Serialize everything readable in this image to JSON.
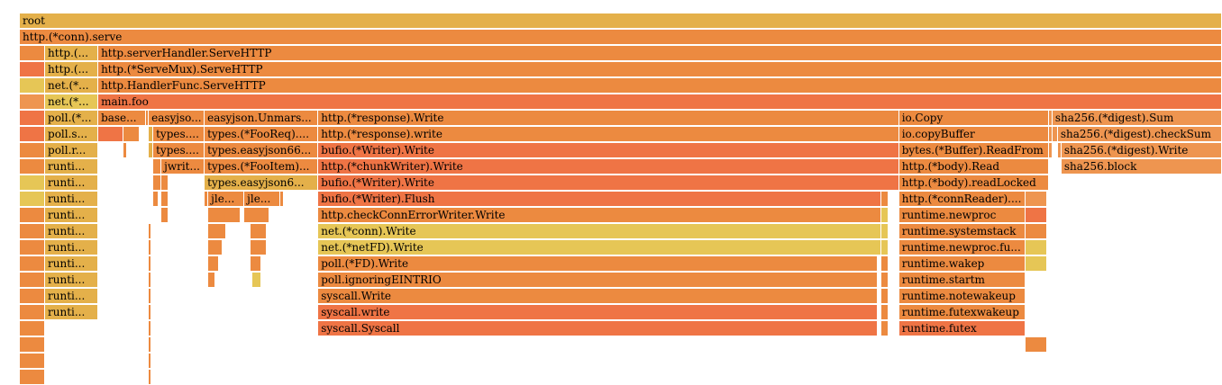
{
  "palette": {
    "gold": "#e4b04a",
    "orange": "#ec8a40",
    "orange_light": "#ee9550",
    "red_orange": "#ef7445",
    "yellow": "#e6c656",
    "salmon": "#ea8e59"
  },
  "total_samples": 1333,
  "rows": [
    [
      {
        "label": "root",
        "start": 0,
        "width": 1333,
        "color": "#e4b04a"
      }
    ],
    [
      {
        "label": "http.(*conn).serve",
        "start": 0,
        "width": 1333,
        "color": "#ec8a40"
      }
    ],
    [
      {
        "label": "",
        "start": 0,
        "width": 28,
        "color": "#ec8a40"
      },
      {
        "label": "http.(...",
        "start": 28,
        "width": 59,
        "color": "#e4b04a"
      },
      {
        "label": "http.serverHandler.ServeHTTP",
        "start": 87,
        "width": 1246,
        "color": "#ec8a40"
      }
    ],
    [
      {
        "label": "",
        "start": 0,
        "width": 28,
        "color": "#ef7445"
      },
      {
        "label": "http.(...",
        "start": 28,
        "width": 59,
        "color": "#e4b04a"
      },
      {
        "label": "http.(*ServeMux).ServeHTTP",
        "start": 87,
        "width": 1246,
        "color": "#ec8a40"
      }
    ],
    [
      {
        "label": "",
        "start": 0,
        "width": 28,
        "color": "#e6c656"
      },
      {
        "label": "net.(*...",
        "start": 28,
        "width": 59,
        "color": "#e4b04a"
      },
      {
        "label": "http.HandlerFunc.ServeHTTP",
        "start": 87,
        "width": 1246,
        "color": "#ec8a40"
      }
    ],
    [
      {
        "label": "",
        "start": 0,
        "width": 28,
        "color": "#ee9550"
      },
      {
        "label": "net.(*...",
        "start": 28,
        "width": 59,
        "color": "#e6c656"
      },
      {
        "label": "main.foo",
        "start": 87,
        "width": 1246,
        "color": "#ef7445"
      }
    ],
    [
      {
        "label": "",
        "start": 0,
        "width": 28,
        "color": "#ef7445"
      },
      {
        "label": "poll.(*...",
        "start": 28,
        "width": 59,
        "color": "#e4b04a"
      },
      {
        "label": "base...",
        "start": 87,
        "width": 53,
        "color": "#ec8a40"
      },
      {
        "label": "",
        "start": 140,
        "width": 3,
        "color": "#ec8a40"
      },
      {
        "label": "easyjso...",
        "start": 143,
        "width": 62,
        "color": "#ec8a40"
      },
      {
        "label": "easyjson.Unmars...",
        "start": 205,
        "width": 126,
        "color": "#ec8a40"
      },
      {
        "label": "http.(*response).Write",
        "start": 331,
        "width": 644,
        "color": "#ec8a40"
      },
      {
        "label": "io.Copy",
        "start": 975,
        "width": 166,
        "color": "#ec8a40"
      },
      {
        "label": "",
        "start": 1141,
        "width": 4,
        "color": "#ee9550"
      },
      {
        "label": "sha256.(*digest).Sum",
        "start": 1145,
        "width": 188,
        "color": "#ee9550"
      }
    ],
    [
      {
        "label": "",
        "start": 0,
        "width": 28,
        "color": "#ef7445"
      },
      {
        "label": "poll.s...",
        "start": 28,
        "width": 59,
        "color": "#e4b04a"
      },
      {
        "label": "",
        "start": 87,
        "width": 28,
        "color": "#ef7445"
      },
      {
        "label": "",
        "start": 115,
        "width": 18,
        "color": "#ec8a40"
      },
      {
        "label": "",
        "start": 143,
        "width": 5,
        "color": "#e4b04a"
      },
      {
        "label": "types....",
        "start": 148,
        "width": 57,
        "color": "#ec8a40"
      },
      {
        "label": "types.(*FooReq)....",
        "start": 205,
        "width": 126,
        "color": "#ec8a40"
      },
      {
        "label": "http.(*response).write",
        "start": 331,
        "width": 644,
        "color": "#ec8a40"
      },
      {
        "label": "io.copyBuffer",
        "start": 975,
        "width": 166,
        "color": "#ec8a40"
      },
      {
        "label": "",
        "start": 1141,
        "width": 4,
        "color": "#ee9550"
      },
      {
        "label": "",
        "start": 1145,
        "width": 6,
        "color": "#ee9550"
      },
      {
        "label": "sha256.(*digest).checkSum",
        "start": 1151,
        "width": 182,
        "color": "#ee9550"
      }
    ],
    [
      {
        "label": "",
        "start": 0,
        "width": 28,
        "color": "#ec8a40"
      },
      {
        "label": "poll.r...",
        "start": 28,
        "width": 59,
        "color": "#e4b04a"
      },
      {
        "label": "",
        "start": 115,
        "width": 4,
        "color": "#ec8a40"
      },
      {
        "label": "",
        "start": 143,
        "width": 5,
        "color": "#e4b04a"
      },
      {
        "label": "types....",
        "start": 148,
        "width": 57,
        "color": "#ec8a40"
      },
      {
        "label": "types.easyjson66...",
        "start": 205,
        "width": 126,
        "color": "#ec8a40"
      },
      {
        "label": "bufio.(*Writer).Write",
        "start": 331,
        "width": 644,
        "color": "#ef7445"
      },
      {
        "label": "bytes.(*Buffer).ReadFrom",
        "start": 975,
        "width": 166,
        "color": "#ec8a40"
      },
      {
        "label": "",
        "start": 1141,
        "width": 4,
        "color": "#ee9550"
      },
      {
        "label": "",
        "start": 1151,
        "width": 4,
        "color": "#ee9550"
      },
      {
        "label": "sha256.(*digest).Write",
        "start": 1155,
        "width": 178,
        "color": "#ee9550"
      }
    ],
    [
      {
        "label": "",
        "start": 0,
        "width": 28,
        "color": "#ec8a40"
      },
      {
        "label": "runti...",
        "start": 28,
        "width": 59,
        "color": "#e4b04a"
      },
      {
        "label": "",
        "start": 148,
        "width": 9,
        "color": "#ec8a40"
      },
      {
        "label": "jwrit...",
        "start": 157,
        "width": 48,
        "color": "#ec8a40"
      },
      {
        "label": "types.(*FooItem)...",
        "start": 205,
        "width": 126,
        "color": "#ec8a40"
      },
      {
        "label": "http.(*chunkWriter).Write",
        "start": 331,
        "width": 644,
        "color": "#ef7445"
      },
      {
        "label": "http.(*body).Read",
        "start": 975,
        "width": 166,
        "color": "#ec8a40"
      },
      {
        "label": "sha256.block",
        "start": 1155,
        "width": 178,
        "color": "#ee9550"
      }
    ],
    [
      {
        "label": "",
        "start": 0,
        "width": 28,
        "color": "#e6c656"
      },
      {
        "label": "runti...",
        "start": 28,
        "width": 59,
        "color": "#e4b04a"
      },
      {
        "label": "",
        "start": 148,
        "width": 9,
        "color": "#ec8a40"
      },
      {
        "label": "",
        "start": 157,
        "width": 8,
        "color": "#ec8a40"
      },
      {
        "label": "types.easyjson6...",
        "start": 205,
        "width": 126,
        "color": "#e4b04a"
      },
      {
        "label": "bufio.(*Writer).Write",
        "start": 331,
        "width": 644,
        "color": "#ef7445"
      },
      {
        "label": "http.(*body).readLocked",
        "start": 975,
        "width": 166,
        "color": "#ec8a40"
      }
    ],
    [
      {
        "label": "",
        "start": 0,
        "width": 28,
        "color": "#e6c656"
      },
      {
        "label": "runti...",
        "start": 28,
        "width": 59,
        "color": "#e4b04a"
      },
      {
        "label": "",
        "start": 148,
        "width": 6,
        "color": "#ec8a40"
      },
      {
        "label": "",
        "start": 157,
        "width": 8,
        "color": "#ec8a40"
      },
      {
        "label": "",
        "start": 205,
        "width": 4,
        "color": "#ec8a40"
      },
      {
        "label": "jle...",
        "start": 209,
        "width": 40,
        "color": "#ec8a40"
      },
      {
        "label": "jle...",
        "start": 249,
        "width": 40,
        "color": "#ec8a40"
      },
      {
        "label": "",
        "start": 289,
        "width": 4,
        "color": "#ec8a40"
      },
      {
        "label": "bufio.(*Writer).Flush",
        "start": 331,
        "width": 624,
        "color": "#ef7445"
      },
      {
        "label": "",
        "start": 955,
        "width": 8,
        "color": "#ec8a40"
      },
      {
        "label": "http.(*connReader)....",
        "start": 975,
        "width": 140,
        "color": "#ec8a40"
      },
      {
        "label": "",
        "start": 1115,
        "width": 24,
        "color": "#ee9550"
      }
    ],
    [
      {
        "label": "",
        "start": 0,
        "width": 28,
        "color": "#ec8a40"
      },
      {
        "label": "runti...",
        "start": 28,
        "width": 59,
        "color": "#e4b04a"
      },
      {
        "label": "",
        "start": 157,
        "width": 8,
        "color": "#ec8a40"
      },
      {
        "label": "",
        "start": 209,
        "width": 36,
        "color": "#ec8a40"
      },
      {
        "label": "",
        "start": 249,
        "width": 28,
        "color": "#ec8a40"
      },
      {
        "label": "http.checkConnErrorWriter.Write",
        "start": 331,
        "width": 624,
        "color": "#ec8a40"
      },
      {
        "label": "",
        "start": 955,
        "width": 8,
        "color": "#e6c656"
      },
      {
        "label": "runtime.newproc",
        "start": 975,
        "width": 140,
        "color": "#ec8a40"
      },
      {
        "label": "",
        "start": 1115,
        "width": 24,
        "color": "#ef7445"
      }
    ],
    [
      {
        "label": "",
        "start": 0,
        "width": 28,
        "color": "#ec8a40"
      },
      {
        "label": "runti...",
        "start": 28,
        "width": 59,
        "color": "#e4b04a"
      },
      {
        "label": "",
        "start": 143,
        "width": 3,
        "color": "#ec8a40"
      },
      {
        "label": "",
        "start": 209,
        "width": 20,
        "color": "#ec8a40"
      },
      {
        "label": "",
        "start": 256,
        "width": 18,
        "color": "#ec8a40"
      },
      {
        "label": "net.(*conn).Write",
        "start": 331,
        "width": 624,
        "color": "#e6c656"
      },
      {
        "label": "",
        "start": 955,
        "width": 8,
        "color": "#e6c656"
      },
      {
        "label": "runtime.systemstack",
        "start": 975,
        "width": 140,
        "color": "#ec8a40"
      },
      {
        "label": "",
        "start": 1115,
        "width": 24,
        "color": "#ec8a40"
      }
    ],
    [
      {
        "label": "",
        "start": 0,
        "width": 28,
        "color": "#ec8a40"
      },
      {
        "label": "runti...",
        "start": 28,
        "width": 59,
        "color": "#e4b04a"
      },
      {
        "label": "",
        "start": 143,
        "width": 3,
        "color": "#ec8a40"
      },
      {
        "label": "",
        "start": 209,
        "width": 16,
        "color": "#ec8a40"
      },
      {
        "label": "",
        "start": 256,
        "width": 18,
        "color": "#ec8a40"
      },
      {
        "label": "net.(*netFD).Write",
        "start": 331,
        "width": 624,
        "color": "#e6c656"
      },
      {
        "label": "",
        "start": 955,
        "width": 8,
        "color": "#e6c656"
      },
      {
        "label": "runtime.newproc.fu...",
        "start": 975,
        "width": 140,
        "color": "#ec8a40"
      },
      {
        "label": "",
        "start": 1115,
        "width": 24,
        "color": "#e6c656"
      }
    ],
    [
      {
        "label": "",
        "start": 0,
        "width": 28,
        "color": "#ec8a40"
      },
      {
        "label": "runti...",
        "start": 28,
        "width": 59,
        "color": "#e4b04a"
      },
      {
        "label": "",
        "start": 143,
        "width": 3,
        "color": "#ec8a40"
      },
      {
        "label": "",
        "start": 209,
        "width": 12,
        "color": "#ec8a40"
      },
      {
        "label": "",
        "start": 256,
        "width": 12,
        "color": "#ec8a40"
      },
      {
        "label": "poll.(*FD).Write",
        "start": 331,
        "width": 620,
        "color": "#ec8a40"
      },
      {
        "label": "",
        "start": 955,
        "width": 8,
        "color": "#ec8a40"
      },
      {
        "label": "runtime.wakep",
        "start": 975,
        "width": 140,
        "color": "#ec8a40"
      },
      {
        "label": "",
        "start": 1115,
        "width": 24,
        "color": "#e6c656"
      }
    ],
    [
      {
        "label": "",
        "start": 0,
        "width": 28,
        "color": "#ec8a40"
      },
      {
        "label": "runti...",
        "start": 28,
        "width": 59,
        "color": "#e4b04a"
      },
      {
        "label": "",
        "start": 143,
        "width": 3,
        "color": "#ec8a40"
      },
      {
        "label": "",
        "start": 209,
        "width": 8,
        "color": "#ec8a40"
      },
      {
        "label": "",
        "start": 258,
        "width": 10,
        "color": "#e6c656"
      },
      {
        "label": "poll.ignoringEINTRIO",
        "start": 331,
        "width": 620,
        "color": "#ec8a40"
      },
      {
        "label": "",
        "start": 955,
        "width": 8,
        "color": "#ec8a40"
      },
      {
        "label": "runtime.startm",
        "start": 975,
        "width": 140,
        "color": "#ec8a40"
      }
    ],
    [
      {
        "label": "",
        "start": 0,
        "width": 28,
        "color": "#ec8a40"
      },
      {
        "label": "runti...",
        "start": 28,
        "width": 59,
        "color": "#e4b04a"
      },
      {
        "label": "",
        "start": 143,
        "width": 3,
        "color": "#ec8a40"
      },
      {
        "label": "syscall.Write",
        "start": 331,
        "width": 620,
        "color": "#ec8a40"
      },
      {
        "label": "",
        "start": 955,
        "width": 8,
        "color": "#ec8a40"
      },
      {
        "label": "runtime.notewakeup",
        "start": 975,
        "width": 140,
        "color": "#ec8a40"
      }
    ],
    [
      {
        "label": "",
        "start": 0,
        "width": 28,
        "color": "#ec8a40"
      },
      {
        "label": "runti...",
        "start": 28,
        "width": 59,
        "color": "#e4b04a"
      },
      {
        "label": "",
        "start": 143,
        "width": 3,
        "color": "#ec8a40"
      },
      {
        "label": "syscall.write",
        "start": 331,
        "width": 620,
        "color": "#ef7445"
      },
      {
        "label": "",
        "start": 955,
        "width": 8,
        "color": "#ec8a40"
      },
      {
        "label": "runtime.futexwakeup",
        "start": 975,
        "width": 140,
        "color": "#ec8a40"
      }
    ],
    [
      {
        "label": "",
        "start": 0,
        "width": 28,
        "color": "#ec8a40"
      },
      {
        "label": "",
        "start": 143,
        "width": 3,
        "color": "#ec8a40"
      },
      {
        "label": "syscall.Syscall",
        "start": 331,
        "width": 620,
        "color": "#ef7445"
      },
      {
        "label": "",
        "start": 955,
        "width": 8,
        "color": "#ec8a40"
      },
      {
        "label": "runtime.futex",
        "start": 975,
        "width": 140,
        "color": "#ef7445"
      }
    ],
    [
      {
        "label": "",
        "start": 0,
        "width": 28,
        "color": "#ec8a40"
      },
      {
        "label": "",
        "start": 143,
        "width": 3,
        "color": "#ec8a40"
      },
      {
        "label": "",
        "start": 1115,
        "width": 24,
        "color": "#ec8a40"
      }
    ],
    [
      {
        "label": "",
        "start": 0,
        "width": 28,
        "color": "#ec8a40"
      },
      {
        "label": "",
        "start": 143,
        "width": 3,
        "color": "#ec8a40"
      }
    ],
    [
      {
        "label": "",
        "start": 0,
        "width": 28,
        "color": "#ec8a40"
      },
      {
        "label": "",
        "start": 143,
        "width": 3,
        "color": "#ec8a40"
      }
    ]
  ]
}
